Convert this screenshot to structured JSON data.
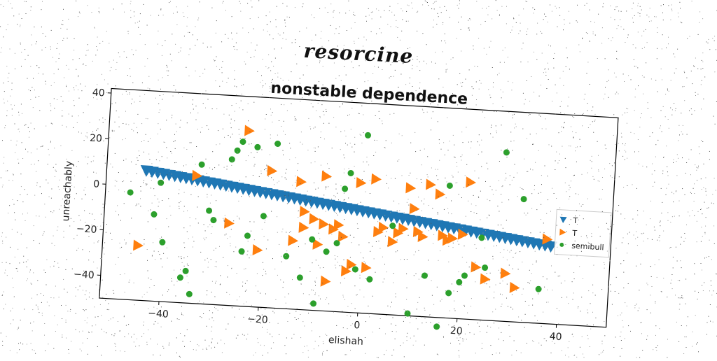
{
  "suptitle": "resorcine",
  "chart_data": {
    "type": "scatter",
    "title": "nonstable dependence",
    "xlabel": "elishah",
    "ylabel": "unreachably",
    "xlim": [
      -52,
      50
    ],
    "ylim": [
      -50,
      42
    ],
    "xticks": [
      -40,
      -20,
      0,
      20,
      40
    ],
    "yticks": [
      40,
      20,
      0,
      -20,
      -40
    ],
    "xtick_labels": [
      "−40",
      "−20",
      "0",
      "20",
      "40"
    ],
    "ytick_labels": [
      "40",
      "20",
      "0",
      "−20",
      "−40"
    ],
    "grid": false,
    "legend_position": "right",
    "series": [
      {
        "name": "T",
        "marker": "triangle-down",
        "color": "#1f77b4",
        "trend": {
          "x_start": -44,
          "x_end": 38,
          "y_start": 7,
          "y_end": -16,
          "count": 72
        }
      },
      {
        "name": "T",
        "marker": "triangle-right",
        "color": "#ff7f0e",
        "x": [
          -46,
          -35,
          -28,
          -25,
          -22,
          -20,
          -15,
          -14,
          -13,
          -13,
          -11,
          -10,
          -9,
          -9,
          -8,
          -7,
          -6,
          -5,
          -4,
          -3,
          -2,
          0,
          1,
          2,
          3,
          5,
          6,
          7,
          8,
          9,
          10,
          11,
          12,
          14,
          15,
          16,
          17,
          19,
          20,
          22,
          24,
          28,
          30,
          36
        ],
        "y": [
          -26,
          6,
          -14,
          27,
          -25,
          10,
          -20,
          6,
          -7,
          -14,
          -10,
          -21,
          9,
          -12,
          -37,
          -14,
          -12,
          -17,
          -32,
          -29,
          7,
          -30,
          9,
          -14,
          -12,
          -18,
          -14,
          -12,
          6,
          -3,
          -13,
          -15,
          8,
          4,
          -14,
          -16,
          -15,
          -13,
          10,
          -27,
          -32,
          -29,
          -35,
          -13
        ],
        "offset_x": 8
      },
      {
        "name": "semibull",
        "marker": "circle",
        "color": "#2ca02c",
        "x": [
          -47,
          -42,
          -41,
          -40,
          -36,
          -35,
          -34,
          -33,
          -31,
          -30,
          -27,
          -26,
          -25,
          -24,
          -23,
          -22,
          -20,
          -18,
          -15,
          -12,
          -10,
          -9,
          -7,
          -5,
          -4,
          -3,
          -1,
          0,
          2,
          6,
          10,
          13,
          16,
          17,
          18,
          20,
          21,
          24,
          25,
          28,
          32,
          36
        ],
        "y": [
          -3,
          -12,
          2,
          -24,
          -39,
          -36,
          -46,
          11,
          -9,
          -13,
          14,
          18,
          22,
          -26,
          -19,
          20,
          -10,
          22,
          -27,
          -36,
          -19,
          -47,
          -24,
          -20,
          4,
          11,
          -31,
          28,
          -35,
          -11,
          -49,
          -32,
          -54,
          8,
          -39,
          -34,
          -31,
          -14,
          -27,
          24,
          4,
          -35
        ],
        "offset_x": 0
      }
    ]
  }
}
